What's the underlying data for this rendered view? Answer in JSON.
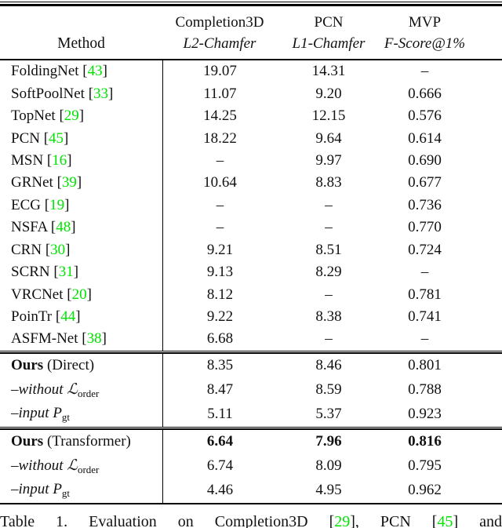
{
  "colors": {
    "citation_green": "#00e400",
    "text": "#111111",
    "rule": "#000000"
  },
  "table": {
    "header": {
      "method_label": "Method",
      "groups": [
        {
          "title": "Completion3D",
          "metric": "L2-Chamfer"
        },
        {
          "title": "PCN",
          "metric": "L1-Chamfer"
        },
        {
          "title": "MVP",
          "metric": "F-Score@1%"
        }
      ]
    },
    "sections": [
      {
        "name": "baselines",
        "rows": [
          {
            "label": [
              {
                "t": "FoldingNet [",
                "s": "plain"
              },
              {
                "t": "43",
                "s": "cite"
              },
              {
                "t": "]",
                "s": "plain"
              }
            ],
            "values": [
              "19.07",
              "14.31",
              "–"
            ],
            "bold": false
          },
          {
            "label": [
              {
                "t": "SoftPoolNet [",
                "s": "plain"
              },
              {
                "t": "33",
                "s": "cite"
              },
              {
                "t": "]",
                "s": "plain"
              }
            ],
            "values": [
              "11.07",
              "9.20",
              "0.666"
            ],
            "bold": false
          },
          {
            "label": [
              {
                "t": "TopNet [",
                "s": "plain"
              },
              {
                "t": "29",
                "s": "cite"
              },
              {
                "t": "]",
                "s": "plain"
              }
            ],
            "values": [
              "14.25",
              "12.15",
              "0.576"
            ],
            "bold": false
          },
          {
            "label": [
              {
                "t": "PCN [",
                "s": "plain"
              },
              {
                "t": "45",
                "s": "cite"
              },
              {
                "t": "]",
                "s": "plain"
              }
            ],
            "values": [
              "18.22",
              "9.64",
              "0.614"
            ],
            "bold": false
          },
          {
            "label": [
              {
                "t": "MSN [",
                "s": "plain"
              },
              {
                "t": "16",
                "s": "cite"
              },
              {
                "t": "]",
                "s": "plain"
              }
            ],
            "values": [
              "–",
              "9.97",
              "0.690"
            ],
            "bold": false
          },
          {
            "label": [
              {
                "t": "GRNet [",
                "s": "plain"
              },
              {
                "t": "39",
                "s": "cite"
              },
              {
                "t": "]",
                "s": "plain"
              }
            ],
            "values": [
              "10.64",
              "8.83",
              "0.677"
            ],
            "bold": false
          },
          {
            "label": [
              {
                "t": "ECG [",
                "s": "plain"
              },
              {
                "t": "19",
                "s": "cite"
              },
              {
                "t": "]",
                "s": "plain"
              }
            ],
            "values": [
              "–",
              "–",
              "0.736"
            ],
            "bold": false
          },
          {
            "label": [
              {
                "t": "NSFA [",
                "s": "plain"
              },
              {
                "t": "48",
                "s": "cite"
              },
              {
                "t": "]",
                "s": "plain"
              }
            ],
            "values": [
              "–",
              "–",
              "0.770"
            ],
            "bold": false
          },
          {
            "label": [
              {
                "t": "CRN [",
                "s": "plain"
              },
              {
                "t": "30",
                "s": "cite"
              },
              {
                "t": "]",
                "s": "plain"
              }
            ],
            "values": [
              "9.21",
              "8.51",
              "0.724"
            ],
            "bold": false
          },
          {
            "label": [
              {
                "t": "SCRN [",
                "s": "plain"
              },
              {
                "t": "31",
                "s": "cite"
              },
              {
                "t": "]",
                "s": "plain"
              }
            ],
            "values": [
              "9.13",
              "8.29",
              "–"
            ],
            "bold": false
          },
          {
            "label": [
              {
                "t": "VRCNet [",
                "s": "plain"
              },
              {
                "t": "20",
                "s": "cite"
              },
              {
                "t": "]",
                "s": "plain"
              }
            ],
            "values": [
              "8.12",
              "–",
              "0.781"
            ],
            "bold": false
          },
          {
            "label": [
              {
                "t": "PoinTr [",
                "s": "plain"
              },
              {
                "t": "44",
                "s": "cite"
              },
              {
                "t": "]",
                "s": "plain"
              }
            ],
            "values": [
              "9.22",
              "8.38",
              "0.741"
            ],
            "bold": false
          },
          {
            "label": [
              {
                "t": "ASFM-Net [",
                "s": "plain"
              },
              {
                "t": "38",
                "s": "cite"
              },
              {
                "t": "]",
                "s": "plain"
              }
            ],
            "values": [
              "6.68",
              "–",
              "–"
            ],
            "bold": false
          }
        ]
      },
      {
        "name": "ours-direct",
        "rows": [
          {
            "label": [
              {
                "t": "Ours",
                "s": "bold"
              },
              {
                "t": " (Direct)",
                "s": "plain"
              }
            ],
            "values": [
              "8.35",
              "8.46",
              "0.801"
            ],
            "bold": false
          },
          {
            "label": [
              {
                "t": "–",
                "s": "plain"
              },
              {
                "t": "without ",
                "s": "italic"
              },
              {
                "t": "ℒ",
                "s": "script"
              },
              {
                "t": "order",
                "s": "sub"
              }
            ],
            "values": [
              "8.47",
              "8.59",
              "0.788"
            ],
            "bold": false
          },
          {
            "label": [
              {
                "t": "–",
                "s": "plain"
              },
              {
                "t": "input ",
                "s": "italic"
              },
              {
                "t": "P",
                "s": "script"
              },
              {
                "t": "gt",
                "s": "sub"
              }
            ],
            "values": [
              "5.11",
              "5.37",
              "0.923"
            ],
            "bold": false
          }
        ]
      },
      {
        "name": "ours-transformer",
        "rows": [
          {
            "label": [
              {
                "t": "Ours",
                "s": "bold"
              },
              {
                "t": " (Transformer)",
                "s": "plain"
              }
            ],
            "values": [
              "6.64",
              "7.96",
              "0.816"
            ],
            "bold": true
          },
          {
            "label": [
              {
                "t": "–",
                "s": "plain"
              },
              {
                "t": "without ",
                "s": "italic"
              },
              {
                "t": "ℒ",
                "s": "script"
              },
              {
                "t": "order",
                "s": "sub"
              }
            ],
            "values": [
              "6.74",
              "8.09",
              "0.795"
            ],
            "bold": false
          },
          {
            "label": [
              {
                "t": "–",
                "s": "plain"
              },
              {
                "t": "input ",
                "s": "italic"
              },
              {
                "t": "P",
                "s": "script"
              },
              {
                "t": "gt",
                "s": "sub"
              }
            ],
            "values": [
              "4.46",
              "4.95",
              "0.962"
            ],
            "bold": false
          }
        ]
      }
    ]
  },
  "caption": {
    "parts": [
      {
        "t": "Table 1. ",
        "s": "plain"
      },
      {
        "t": "Evaluation on Completion3D [",
        "s": "plain"
      },
      {
        "t": "29",
        "s": "cite"
      },
      {
        "t": "], PCN [",
        "s": "plain"
      },
      {
        "t": "45",
        "s": "cite"
      },
      {
        "t": "] and",
        "s": "plain"
      }
    ]
  }
}
